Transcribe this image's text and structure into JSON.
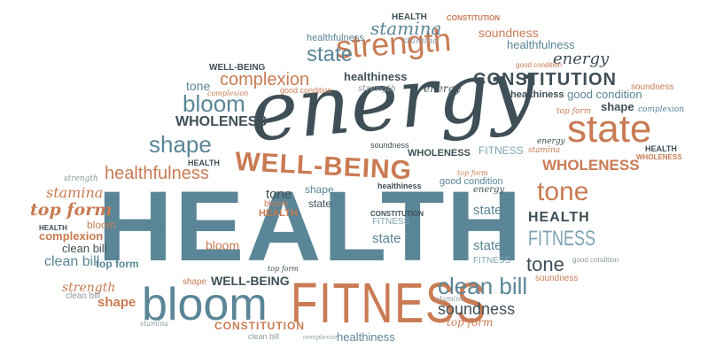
{
  "image": {
    "kind": "word cloud",
    "colors": {
      "teal": "#5a8697",
      "dark": "#3f4f57",
      "orange": "#c97b54",
      "light_teal": "#7ea4b3",
      "grey": "#8c9aa0"
    }
  },
  "words": {
    "w_health_big": "HEALTH",
    "w_energy_big": "energy",
    "w_fitness_big": "FITNESS",
    "w_bloom_big": "bloom",
    "w_strength_top": "strength",
    "w_state_right": "state",
    "w_wellbeing_mid": "WELL-BEING",
    "w_constitution_top": "CONSTITUTION",
    "w_wholeness_right": "WHOLENESS",
    "w_tone_right": "tone",
    "w_cleanbill_bottom": "clean bill",
    "w_soundness_bottom": "soundness",
    "w_shape_left": "shape",
    "w_complexion_top": "complexion",
    "w_healthfulness_left": "healthfulness",
    "w_topform_left": "top form",
    "w_health_small1": "HEALTH",
    "w_constitution_small1": "CONSTITUTION",
    "w_stamina_top": "stamina",
    "w_stamina_small": "stamina",
    "w_soundness_top": "soundness",
    "w_healthfulness_top": "healthfulness",
    "w_state_top": "state",
    "w_energy_top_right": "energy",
    "w_good_condition_top": "good condition",
    "w_wellbeing_top": "WELL-BEING",
    "w_tone_top": "tone",
    "w_complexion_small": "complexion",
    "w_good_condition_small": "good condition",
    "w_healthiness_top": "healthiness",
    "w_strength_small": "strength",
    "w_energy_small": "energy",
    "w_healthiness_top2": "healthiness",
    "w_good_condition_top2": "good condition",
    "w_soundness_top2": "soundness",
    "w_bloom_top": "bloom",
    "w_wholeness_left": "WHOLENESS",
    "w_shape_right": "shape",
    "w_complexion_right": "complexion",
    "w_topform_right": "top form",
    "w_energy_right": "energy",
    "w_stamina_right": "stamina",
    "w_health_right": "HEALTH",
    "w_wholeness_right2": "WHOLENESS",
    "w_soundness_mid": "soundness",
    "w_wholeness_mid": "WHOLENESS",
    "w_fitness_mid": "FITNESS",
    "w_healthiness_mid": "healthiness",
    "w_topform_mid": "top form",
    "w_good_condition_mid": "good condition",
    "w_energy_mid": "energy",
    "w_strength_left": "strength",
    "w_health_left": "HEALTH",
    "w_stamina_left": "stamina",
    "w_topform_left2": "top form",
    "w_health_left2": "HEALTH",
    "w_bloom_left": "bloom",
    "w_complexion_left": "complexion",
    "w_cleanbill_left": "clean bill",
    "w_cleanbill_left2": "clean bill",
    "w_strength_left2": "strength",
    "w_cleanbill_left3": "clean bill",
    "w_shape_left2": "shape",
    "w_tone_mid": "tone",
    "w_shape_mid": "shape",
    "w_state_mid": "state",
    "w_health_mid": "HEALTH",
    "w_bloom_mid": "bloom",
    "w_bloom_mid2": "bloom",
    "w_constitution_mid": "CONSTITUTION",
    "w_fitness_mid2": "FITNESS",
    "w_state_mid2": "state",
    "w_state_mid3": "state",
    "w_state_mid4": "state",
    "w_fitness_mid3": "FITNESS",
    "w_health_right2": "HEALTH",
    "w_fitness_right": "FITNESS",
    "w_tone_right2": "tone",
    "w_soundness_right": "soundness",
    "w_good_condition_right": "good condition",
    "w_wellbeing_low": "WELL-BEING",
    "w_shape_low": "shape",
    "w_topform_low": "top form",
    "w_stamina_low": "stamina",
    "w_constitution_low": "CONSTITUTION",
    "w_cleanbill_low": "clean bill",
    "w_complexion_low": "complexion",
    "w_healthiness_low": "healthiness",
    "w_topform_low2": "top form",
    "w_stamina_low2": "stamina"
  }
}
